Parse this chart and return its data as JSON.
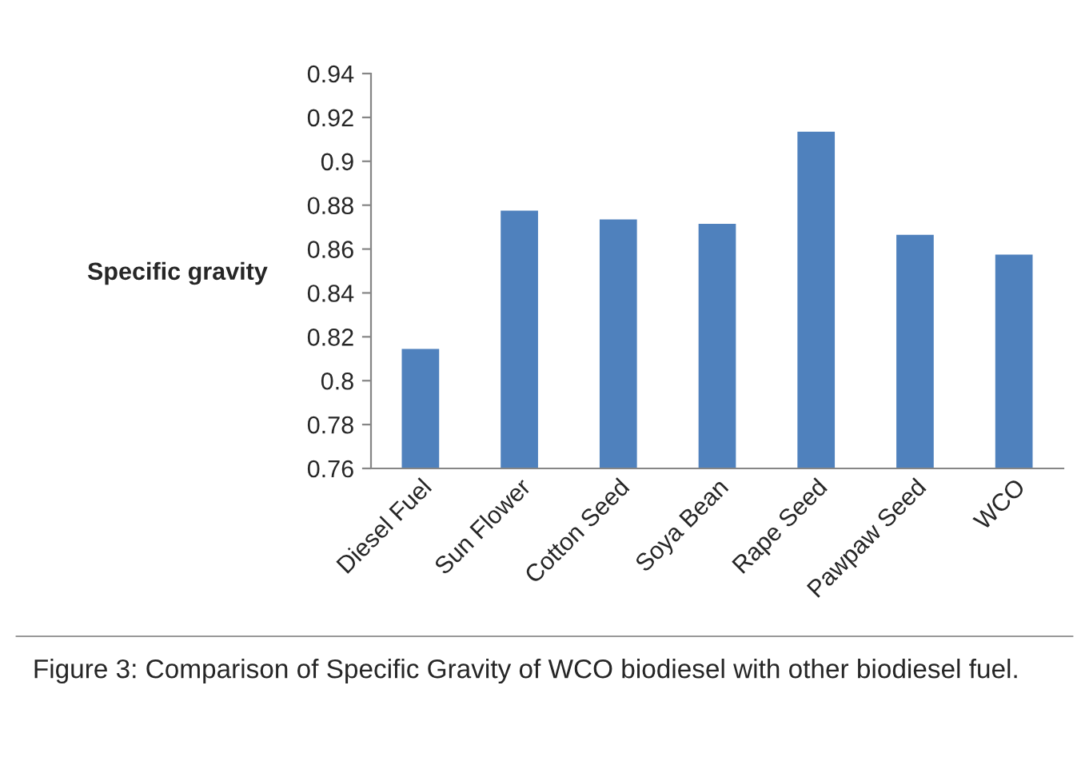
{
  "chart_data": {
    "type": "bar",
    "ylabel": "Specific gravity",
    "categories": [
      "Diesel Fuel",
      "Sun Flower",
      "Cotton Seed",
      "Soya Bean",
      "Rape Seed",
      "Pawpaw Seed",
      "WCO"
    ],
    "values": [
      0.815,
      0.878,
      0.874,
      0.872,
      0.914,
      0.867,
      0.858
    ],
    "color": "#4f81bd",
    "ylim": [
      0.76,
      0.94
    ],
    "yticks": [
      0.76,
      0.78,
      0.8,
      0.82,
      0.84,
      0.86,
      0.88,
      0.9,
      0.92,
      0.94
    ],
    "grid": false,
    "annotations": [
      "Figure 3: Comparison of Specific Gravity of WCO biodiesel with other biodiesel fuel."
    ]
  }
}
